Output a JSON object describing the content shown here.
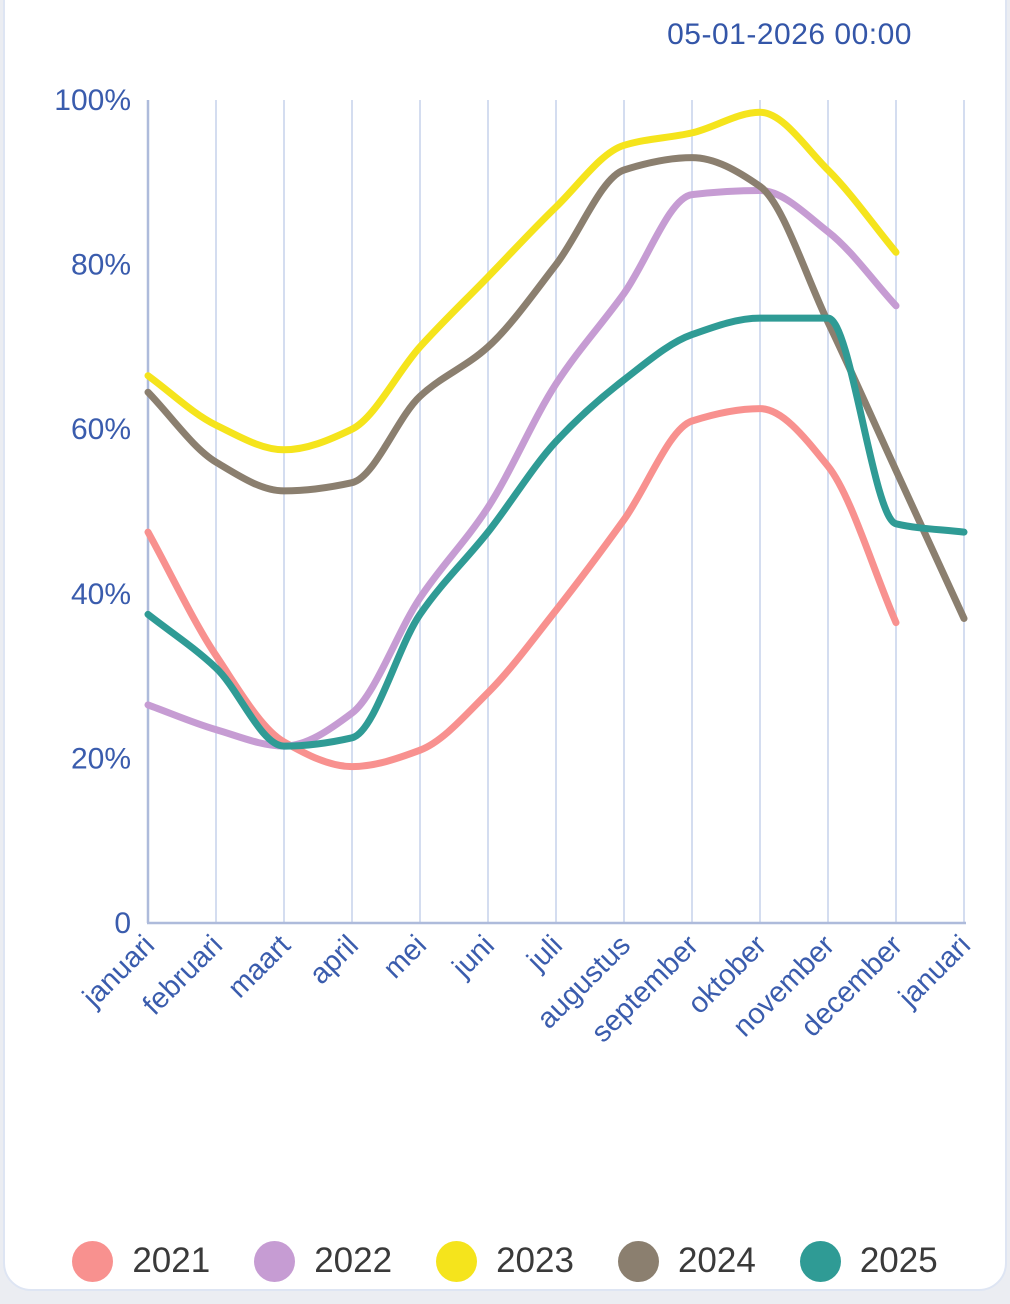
{
  "header": {
    "timestamp": "05-01-2026 00:00"
  },
  "chart_data": {
    "type": "line",
    "title": "",
    "xlabel": "",
    "ylabel": "",
    "categories": [
      "januari",
      "februari",
      "maart",
      "april",
      "mei",
      "juni",
      "juli",
      "augustus",
      "september",
      "oktober",
      "november",
      "december",
      "januari"
    ],
    "series": [
      {
        "name": "2021",
        "color": "#f8918f",
        "values": [
          47.5,
          32.5,
          22,
          19,
          21,
          28,
          38,
          49,
          61,
          62.5,
          55.5,
          36.5,
          null
        ]
      },
      {
        "name": "2022",
        "color": "#c69cd3",
        "values": [
          26.5,
          23.5,
          21.5,
          25.5,
          39.5,
          50.5,
          65.5,
          76.5,
          88.5,
          89,
          84,
          75,
          null
        ]
      },
      {
        "name": "2023",
        "color": "#f5e41c",
        "values": [
          66.5,
          60.5,
          57.5,
          60,
          70,
          78.5,
          87,
          94.5,
          96,
          98.5,
          91.5,
          81.5,
          null
        ]
      },
      {
        "name": "2024",
        "color": "#8b7f6f",
        "values": [
          64.5,
          56,
          52.5,
          53.5,
          64,
          70,
          80,
          91.5,
          93,
          89.5,
          73,
          55,
          37
        ]
      },
      {
        "name": "2025",
        "color": "#2f9b95",
        "values": [
          37.5,
          31,
          21.5,
          22.5,
          37.5,
          47.5,
          58.5,
          66,
          71.5,
          73.5,
          73.5,
          48.5,
          47.5
        ]
      }
    ],
    "ylim": [
      0,
      100
    ],
    "yticks": [
      {
        "value": 100,
        "label": "100%"
      },
      {
        "value": 80,
        "label": "80%"
      },
      {
        "value": 60,
        "label": "60%"
      },
      {
        "value": 40,
        "label": "40%"
      },
      {
        "value": 20,
        "label": "20%"
      },
      {
        "value": 0,
        "label": "0"
      }
    ],
    "grid": "vertical-only",
    "legend_position": "bottom"
  },
  "colors": {
    "timestamp": "#3456a8",
    "axis_label": "#3a5cad",
    "gridline": "#d4ddf0",
    "axis_line": "#aebbdb",
    "legend_text": "#3a3a3a",
    "card_background": "#ffffff",
    "card_border": "#dee5f3",
    "page_background": "#ebedf2"
  }
}
